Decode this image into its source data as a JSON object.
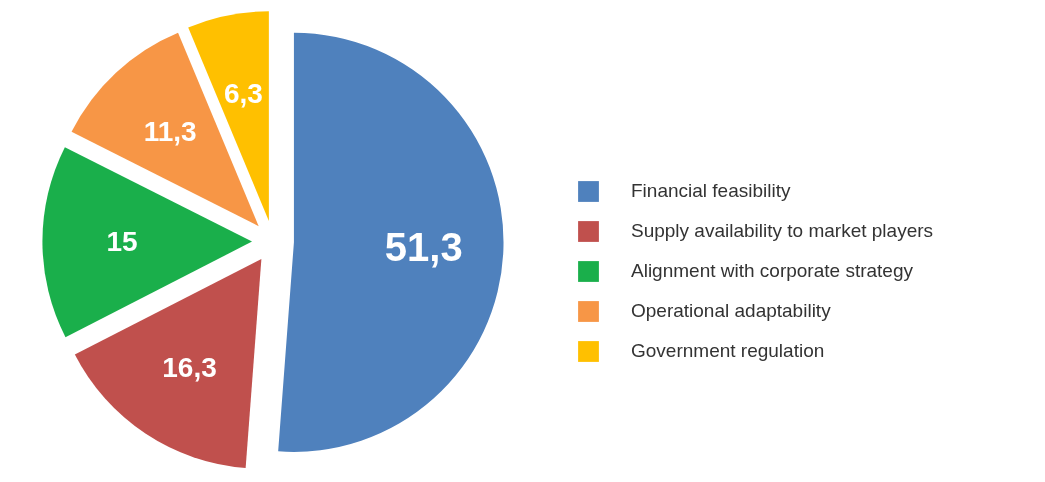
{
  "chart_data": {
    "type": "pie",
    "categories": [
      "Financial feasibility",
      "Supply availability to market players",
      "Alignment with corporate strategy",
      "Operational adaptability",
      "Government regulation"
    ],
    "values": [
      51.3,
      16.3,
      15,
      11.3,
      6.3
    ],
    "value_labels": [
      "51,3",
      "16,3",
      "15",
      "11,3",
      "6,3"
    ],
    "colors": [
      "#4f81bd",
      "#c0504d",
      "#1aaf4b",
      "#f79646",
      "#ffc000"
    ],
    "legend": "right"
  }
}
